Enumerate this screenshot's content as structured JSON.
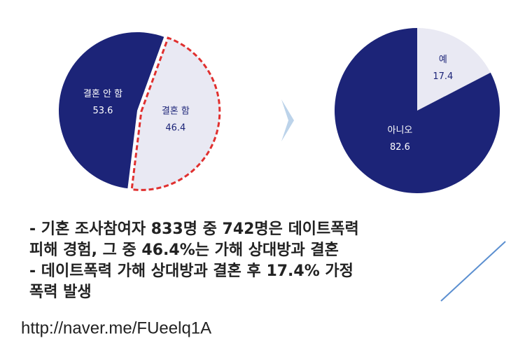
{
  "chart_data": [
    {
      "type": "pie",
      "categories": [
        "결혼 안 함",
        "결혼 함"
      ],
      "values": [
        53.6,
        46.4
      ],
      "colors": [
        "#1c2478",
        "#e9e9f3"
      ]
    },
    {
      "type": "pie",
      "categories": [
        "예",
        "아니오"
      ],
      "values": [
        17.4,
        82.6
      ],
      "colors": [
        "#e9e9f3",
        "#1c2478"
      ]
    }
  ],
  "text": {
    "lines": [
      "- 기혼 조사참여자 833명 중 742명은 데이트폭력",
      "피해 경험, 그 중 46.4%는 가해 상대방과 결혼",
      "- 데이트폭력 가해 상대방과 결혼 후 17.4% 가정",
      "폭력 발생"
    ]
  },
  "link": "http://naver.me/FUeelq1A"
}
